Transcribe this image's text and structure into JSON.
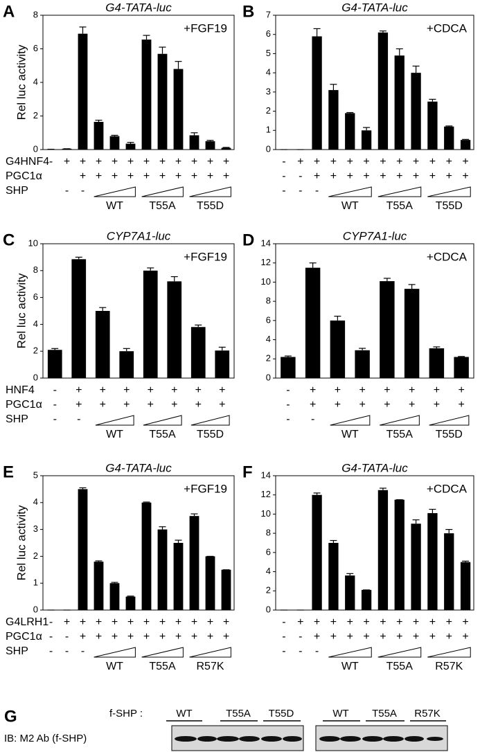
{
  "chart_data": [
    {
      "type": "bar",
      "panel": "A",
      "title": "G4-TATA-luc",
      "annotation": "+FGF19",
      "y_label": "Rel luc activity",
      "values": [
        0.02,
        0.05,
        6.9,
        1.65,
        0.8,
        0.35,
        6.55,
        5.7,
        4.8,
        0.85,
        0.5,
        0.1
      ],
      "errors": [
        0,
        0,
        0.4,
        0.1,
        0.05,
        0.08,
        0.25,
        0.4,
        0.45,
        0.15,
        0.05,
        0.03
      ],
      "color": "#000000",
      "ylim": [
        0,
        8
      ],
      "yticks": [
        0,
        2,
        4,
        6,
        8
      ],
      "rows": [
        {
          "label": "G4HNF4",
          "marks": [
            "-",
            "+",
            "+",
            "+",
            "+",
            "+",
            "+",
            "+",
            "+",
            "+",
            "+",
            "+"
          ]
        },
        {
          "label": "PGC1α",
          "marks": [
            null,
            null,
            "+",
            "+",
            "+",
            "+",
            "+",
            "+",
            "+",
            "+",
            "+",
            "+"
          ]
        },
        {
          "label": "SHP",
          "marks": [
            null,
            "-",
            "-",
            null,
            null,
            null,
            null,
            null,
            null,
            null,
            null,
            null
          ]
        }
      ],
      "groups": [
        {
          "label": "WT",
          "start": 3,
          "end": 5
        },
        {
          "label": "T55A",
          "start": 6,
          "end": 8
        },
        {
          "label": "T55D",
          "start": 9,
          "end": 11
        }
      ]
    },
    {
      "type": "bar",
      "panel": "B",
      "title": "G4-TATA-luc",
      "annotation": "+CDCA",
      "values": [
        0,
        0,
        5.9,
        3.1,
        1.9,
        1.0,
        6.1,
        4.9,
        4.0,
        2.5,
        1.2,
        0.5
      ],
      "errors": [
        0,
        0,
        0.4,
        0.3,
        0.03,
        0.15,
        0.08,
        0.35,
        0.35,
        0.12,
        0.03,
        0.03
      ],
      "color": "#000000",
      "ylim": [
        0,
        7
      ],
      "yticks": [
        0,
        1,
        2,
        3,
        4,
        5,
        6,
        7
      ],
      "rows": [
        {
          "marks": [
            "-",
            "+",
            "+",
            "+",
            "+",
            "+",
            "+",
            "+",
            "+",
            "+",
            "+",
            "+"
          ]
        },
        {
          "marks": [
            "-",
            "-",
            "+",
            "+",
            "+",
            "+",
            "+",
            "+",
            "+",
            "+",
            "+",
            "+"
          ]
        },
        {
          "marks": [
            "-",
            "-",
            "-",
            null,
            null,
            null,
            null,
            null,
            null,
            null,
            null,
            null
          ]
        }
      ],
      "groups": [
        {
          "label": "WT",
          "start": 3,
          "end": 5
        },
        {
          "label": "T55A",
          "start": 6,
          "end": 8
        },
        {
          "label": "T55D",
          "start": 9,
          "end": 11
        }
      ]
    },
    {
      "type": "bar",
      "panel": "C",
      "title": "CYP7A1-luc",
      "annotation": "+FGF19",
      "y_label": "Rel luc activity",
      "values": [
        2.1,
        8.85,
        5.0,
        2.0,
        8.0,
        7.2,
        3.8,
        2.05
      ],
      "errors": [
        0.1,
        0.15,
        0.25,
        0.2,
        0.2,
        0.35,
        0.15,
        0.25
      ],
      "color": "#000000",
      "ylim": [
        0,
        10
      ],
      "yticks": [
        0,
        2,
        4,
        6,
        8,
        10
      ],
      "rows": [
        {
          "label": "HNF4",
          "marks": [
            "-",
            "+",
            "+",
            "+",
            "+",
            "+",
            "+",
            "+"
          ]
        },
        {
          "label": "PGC1α",
          "marks": [
            "-",
            "+",
            "+",
            "+",
            "+",
            "+",
            "+",
            "+"
          ]
        },
        {
          "label": "SHP",
          "marks": [
            "-",
            "-",
            null,
            null,
            null,
            null,
            null,
            null
          ]
        }
      ],
      "groups": [
        {
          "label": "WT",
          "start": 2,
          "end": 3
        },
        {
          "label": "T55A",
          "start": 4,
          "end": 5
        },
        {
          "label": "T55D",
          "start": 6,
          "end": 7
        }
      ]
    },
    {
      "type": "bar",
      "panel": "D",
      "title": "CYP7A1-luc",
      "annotation": "+CDCA",
      "values": [
        2.2,
        11.5,
        6.0,
        2.9,
        10.1,
        9.3,
        3.1,
        2.2
      ],
      "errors": [
        0.1,
        0.5,
        0.45,
        0.2,
        0.3,
        0.45,
        0.15,
        0.05
      ],
      "color": "#000000",
      "ylim": [
        0,
        14
      ],
      "yticks": [
        0,
        2,
        4,
        6,
        8,
        10,
        12,
        14
      ],
      "rows": [
        {
          "marks": [
            "-",
            "+",
            "+",
            "+",
            "+",
            "+",
            "+",
            "+"
          ]
        },
        {
          "marks": [
            "-",
            "+",
            "+",
            "+",
            "+",
            "+",
            "+",
            "+"
          ]
        },
        {
          "marks": [
            "-",
            "-",
            null,
            null,
            null,
            null,
            null,
            null
          ]
        }
      ],
      "groups": [
        {
          "label": "WT",
          "start": 2,
          "end": 3
        },
        {
          "label": "T55A",
          "start": 4,
          "end": 5
        },
        {
          "label": "T55D",
          "start": 6,
          "end": 7
        }
      ]
    },
    {
      "type": "bar",
      "panel": "E",
      "title": "G4-TATA-luc",
      "annotation": "+FGF19",
      "y_label": "Rel luc activity",
      "values": [
        0,
        0,
        4.5,
        1.8,
        1.0,
        0.5,
        4.0,
        3.0,
        2.5,
        3.5,
        2.0,
        1.5
      ],
      "errors": [
        0,
        0,
        0.05,
        0.03,
        0.03,
        0.02,
        0.02,
        0.1,
        0.1,
        0.08,
        0,
        0
      ],
      "color": "#000000",
      "ylim": [
        0,
        5
      ],
      "yticks": [
        0,
        1,
        2,
        3,
        4,
        5
      ],
      "rows": [
        {
          "label": "G4LRH1",
          "marks": [
            "-",
            "+",
            "+",
            "+",
            "+",
            "+",
            "+",
            "+",
            "+",
            "+",
            "+",
            "+"
          ]
        },
        {
          "label": "PGC1α",
          "marks": [
            "-",
            "-",
            "+",
            "+",
            "+",
            "+",
            "+",
            "+",
            "+",
            "+",
            "+",
            "+"
          ]
        },
        {
          "label": "SHP",
          "marks": [
            "-",
            "-",
            "-",
            null,
            null,
            null,
            null,
            null,
            null,
            null,
            null,
            null
          ]
        }
      ],
      "groups": [
        {
          "label": "WT",
          "start": 3,
          "end": 5
        },
        {
          "label": "T55A",
          "start": 6,
          "end": 8
        },
        {
          "label": "R57K",
          "start": 9,
          "end": 11
        }
      ]
    },
    {
      "type": "bar",
      "panel": "F",
      "title": "G4-TATA-luc",
      "annotation": "+CDCA",
      "values": [
        0,
        0,
        12.0,
        7.0,
        3.6,
        2.1,
        12.5,
        11.5,
        9.0,
        10.1,
        8.0,
        5.0
      ],
      "errors": [
        0,
        0,
        0.2,
        0.25,
        0.2,
        0,
        0.2,
        0,
        0.4,
        0.4,
        0.4,
        0.1
      ],
      "color": "#000000",
      "ylim": [
        0,
        14
      ],
      "yticks": [
        0,
        2,
        4,
        6,
        8,
        10,
        12,
        14
      ],
      "rows": [
        {
          "marks": [
            "-",
            "+",
            "+",
            "+",
            "+",
            "+",
            "+",
            "+",
            "+",
            "+",
            "+",
            "+"
          ]
        },
        {
          "marks": [
            "-",
            "-",
            "+",
            "+",
            "+",
            "+",
            "+",
            "+",
            "+",
            "+",
            "+",
            "+"
          ]
        },
        {
          "marks": [
            "-",
            "-",
            "-",
            null,
            null,
            null,
            null,
            null,
            null,
            null,
            null,
            null
          ]
        }
      ],
      "groups": [
        {
          "label": "WT",
          "start": 3,
          "end": 5
        },
        {
          "label": "T55A",
          "start": 6,
          "end": 8
        },
        {
          "label": "R57K",
          "start": 9,
          "end": 11
        }
      ]
    }
  ],
  "blot": {
    "panel": "G",
    "header": "f-SHP :",
    "row_label": "IB: M2 Ab (f-SHP)",
    "left_groups": [
      "WT",
      "T55A",
      "T55D"
    ],
    "right_groups": [
      "WT",
      "T55A",
      "R57K"
    ]
  }
}
